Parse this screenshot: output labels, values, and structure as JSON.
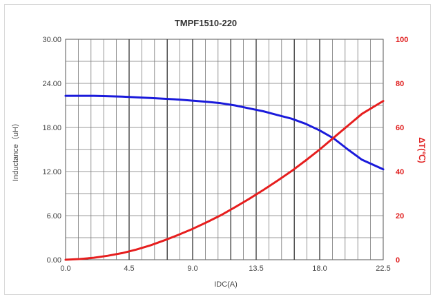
{
  "chart_data": {
    "type": "line",
    "title": "TMPF1510-220",
    "xlabel": "IDC(A)",
    "ylabel": "Inductance（uH）",
    "y2label": "ΔT(℃)",
    "xlim": [
      0,
      22.5
    ],
    "ylim": [
      0,
      30
    ],
    "y2lim": [
      0,
      100
    ],
    "x_ticks": [
      "0.0",
      "4.5",
      "9.0",
      "13.5",
      "18.0",
      "22.5"
    ],
    "y_ticks": [
      "0.00",
      "6.00",
      "12.00",
      "18.00",
      "24.00",
      "30.00"
    ],
    "y2_ticks": [
      "0",
      "20",
      "40",
      "60",
      "80",
      "100"
    ],
    "grid": true,
    "colors": {
      "inductance": "#1a1adb",
      "temperature": "#e61e1e"
    },
    "series": [
      {
        "axis": "left",
        "x": [
          0,
          2,
          4,
          6,
          8,
          10,
          11,
          12,
          13,
          14,
          15,
          16,
          17,
          18,
          19,
          20,
          21,
          22.5
        ],
        "values": [
          22.3,
          22.3,
          22.2,
          22.0,
          21.8,
          21.5,
          21.3,
          21.0,
          20.6,
          20.2,
          19.7,
          19.2,
          18.5,
          17.6,
          16.5,
          15.0,
          13.6,
          12.3
        ]
      },
      {
        "axis": "right",
        "x": [
          0,
          1,
          2,
          3,
          4,
          5,
          6,
          7,
          8,
          9,
          10,
          11,
          12,
          13,
          14,
          15,
          16,
          17,
          18,
          19,
          20,
          21,
          22.5
        ],
        "values": [
          0,
          0.3,
          0.9,
          1.8,
          3.0,
          4.6,
          6.5,
          8.8,
          11.3,
          14.0,
          17.0,
          20.2,
          23.8,
          27.6,
          31.6,
          35.8,
          40.2,
          45.0,
          50.0,
          55.4,
          60.8,
          66.2,
          72.0
        ]
      }
    ]
  }
}
